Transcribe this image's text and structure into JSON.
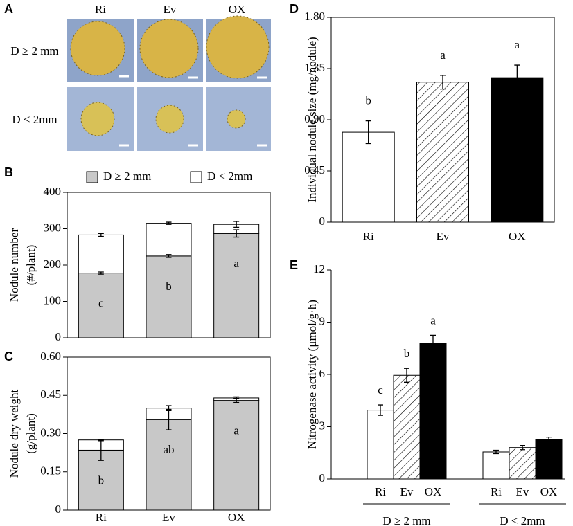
{
  "photo_panel": {
    "panel": "A",
    "columns": [
      "Ri",
      "Ev",
      "OX"
    ],
    "rows": [
      "D ≥ 2 mm",
      "D < 2mm"
    ]
  },
  "chart_data": [
    {
      "panel": "B",
      "type": "stacked_bar",
      "ylabel": [
        "Nodule number",
        "(#/plant)"
      ],
      "series": [
        {
          "name": "D ≥ 2 mm",
          "color": "#c8c8c8",
          "values": [
            178,
            225,
            287
          ],
          "errors": [
            3,
            4,
            10
          ],
          "letters": [
            "c",
            "b",
            "a"
          ]
        },
        {
          "name": "D < 2mm",
          "color": "#ffffff",
          "values": [
            105,
            90,
            25
          ],
          "errors": [
            4,
            3,
            8
          ]
        }
      ],
      "ylim": [
        0,
        400
      ],
      "yticks": [
        0,
        100,
        200,
        300,
        400
      ],
      "legend": "top"
    },
    {
      "panel": "C",
      "type": "stacked_bar",
      "ylabel": [
        "Nodule dry weight",
        "(g/plant)"
      ],
      "categories": [
        "Ri",
        "Ev",
        "OX"
      ],
      "series": [
        {
          "name": "D ≥ 2 mm",
          "color": "#c8c8c8",
          "values": [
            0.235,
            0.355,
            0.43
          ],
          "errors": [
            0.04,
            0.04,
            0.008
          ],
          "letters": [
            "b",
            "ab",
            "a"
          ]
        },
        {
          "name": "D < 2mm",
          "color": "#ffffff",
          "values": [
            0.04,
            0.045,
            0.01
          ],
          "errors": [
            0.003,
            0.01,
            0.004
          ]
        }
      ],
      "ylim": [
        0,
        0.6
      ],
      "yticks": [
        0,
        0.15,
        {
          "value": 0.3,
          "label": "0.30"
        },
        0.45,
        {
          "value": 0.6,
          "label": "0.60"
        }
      ]
    },
    {
      "panel": "D",
      "type": "bar",
      "ylabel": [
        "Individual  nodule size (mg/nodule)"
      ],
      "categories": [
        "Ri",
        "Ev",
        "OX"
      ],
      "values": [
        0.79,
        1.23,
        1.27
      ],
      "errors": [
        0.1,
        0.06,
        0.11
      ],
      "letters": [
        "b",
        "a",
        "a"
      ],
      "colors": [
        "#ffffff",
        "#ffffff",
        "#000000"
      ],
      "hatch": [
        false,
        true,
        false
      ],
      "ylim": [
        0,
        1.8
      ],
      "yticks": [
        0,
        0.45,
        {
          "value": 0.9,
          "label": "0.90"
        },
        1.35,
        {
          "value": 1.8,
          "label": "1.80"
        }
      ]
    },
    {
      "panel": "E",
      "type": "grouped_bar",
      "ylabel": [
        "Nitrogenase activity (μmol/g·h)"
      ],
      "categories": [
        "D ≥ 2 mm",
        "D < 2mm"
      ],
      "series": [
        {
          "name": "Ri",
          "color": "#ffffff",
          "values": [
            3.95,
            1.55
          ],
          "errors": [
            0.3,
            0.1
          ],
          "letters": [
            "c",
            null
          ]
        },
        {
          "name": "Ev",
          "color": "#ffffff",
          "hatch": true,
          "values": [
            5.95,
            1.8
          ],
          "errors": [
            0.4,
            0.12
          ],
          "letters": [
            "b",
            null
          ]
        },
        {
          "name": "OX",
          "color": "#000000",
          "values": [
            7.8,
            2.25
          ],
          "errors": [
            0.45,
            0.15
          ],
          "letters": [
            "a",
            null
          ]
        }
      ],
      "ylim": [
        0,
        12
      ],
      "yticks": [
        0,
        3,
        6,
        9,
        12
      ]
    }
  ]
}
